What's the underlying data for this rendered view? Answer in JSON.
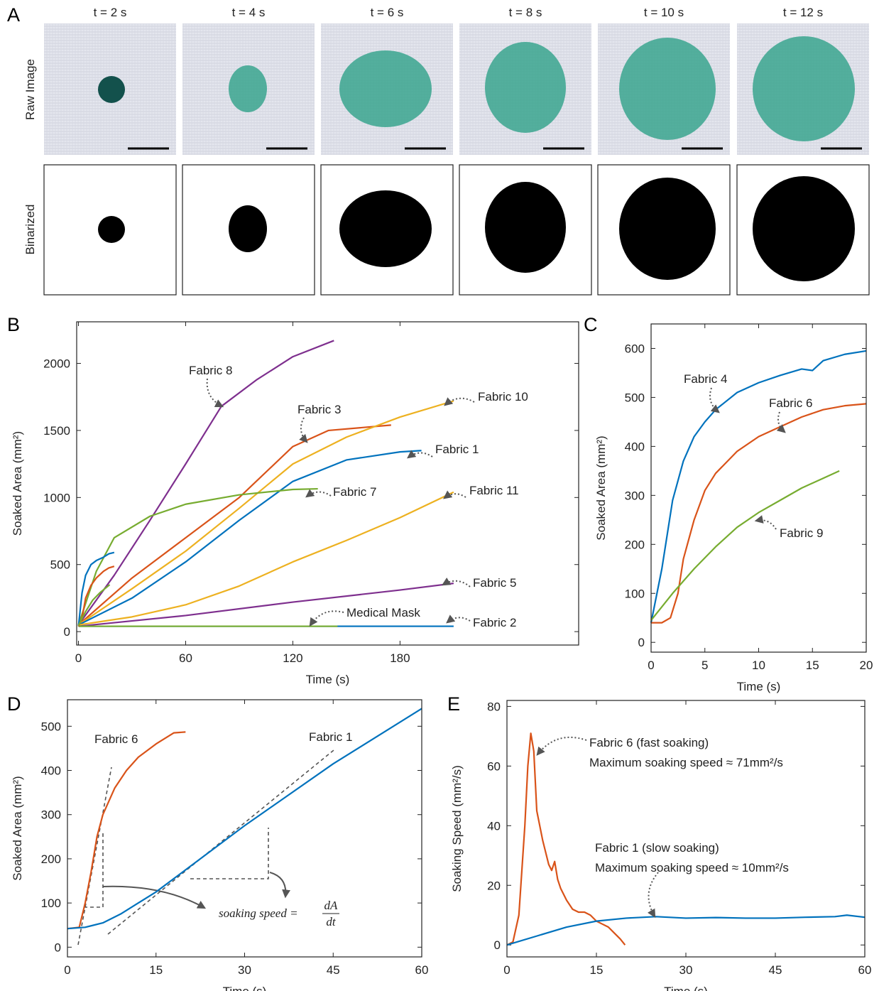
{
  "figure_a": {
    "label": "A",
    "times": [
      "t = 2 s",
      "t = 4 s",
      "t = 6 s",
      "t = 8 s",
      "t = 10 s",
      "t = 12 s"
    ],
    "rows": [
      "Raw Image",
      "Binarized"
    ]
  },
  "chart_data": [
    {
      "type": "line",
      "label": "B",
      "xlabel": "Time (s)",
      "ylabel": "Soaked Area (mm²)",
      "xlim": [
        -1,
        280
      ],
      "ylim": [
        -100,
        2310
      ],
      "xticks": [
        0,
        60,
        120,
        180
      ],
      "yticks": [
        0,
        500,
        1000,
        1500,
        2000
      ],
      "series": [
        {
          "name": "Fabric 8",
          "color": "#7e2f8e",
          "x": [
            0,
            20,
            40,
            60,
            80,
            100,
            120,
            143
          ],
          "values": [
            50,
            420,
            830,
            1250,
            1680,
            1880,
            2050,
            2170
          ]
        },
        {
          "name": "Fabric 3",
          "color": "#d95319",
          "x": [
            0,
            30,
            60,
            90,
            120,
            140,
            175
          ],
          "values": [
            50,
            400,
            700,
            1000,
            1380,
            1500,
            1540
          ]
        },
        {
          "name": "Fabric 10",
          "color": "#edb120",
          "x": [
            0,
            30,
            60,
            90,
            120,
            150,
            180,
            210
          ],
          "values": [
            50,
            320,
            600,
            920,
            1250,
            1450,
            1600,
            1720
          ]
        },
        {
          "name": "Fabric 1",
          "color": "#0072bd",
          "x": [
            0,
            30,
            60,
            90,
            120,
            150,
            180,
            192
          ],
          "values": [
            50,
            250,
            520,
            830,
            1120,
            1280,
            1340,
            1350
          ]
        },
        {
          "name": "Fabric 7",
          "color": "#77ac30",
          "x": [
            0,
            10,
            20,
            40,
            60,
            90,
            120,
            134
          ],
          "values": [
            50,
            450,
            700,
            860,
            950,
            1020,
            1060,
            1065
          ]
        },
        {
          "name": "Fabric 11",
          "color": "#edb120",
          "x": [
            0,
            30,
            60,
            90,
            120,
            150,
            180,
            210
          ],
          "values": [
            50,
            110,
            200,
            340,
            520,
            680,
            850,
            1040
          ]
        },
        {
          "name": "Fabric 5",
          "color": "#7e2f8e",
          "x": [
            0,
            60,
            120,
            180,
            210
          ],
          "values": [
            40,
            120,
            220,
            310,
            360
          ]
        },
        {
          "name": "Fabric 2",
          "color": "#0072bd",
          "x": [
            0,
            210
          ],
          "values": [
            40,
            40
          ]
        },
        {
          "name": "Medical Mask",
          "color": "#77ac30",
          "x": [
            0,
            145
          ],
          "values": [
            40,
            40
          ]
        },
        {
          "color": "#0072bd",
          "x": [
            0,
            2,
            4,
            7,
            10,
            14,
            17,
            20
          ],
          "values": [
            40,
            290,
            420,
            500,
            530,
            555,
            580,
            590
          ]
        },
        {
          "color": "#d95319",
          "x": [
            0,
            2,
            4,
            7,
            10,
            14,
            17,
            20
          ],
          "values": [
            40,
            100,
            250,
            345,
            400,
            450,
            475,
            487
          ]
        },
        {
          "color": "#77ac30",
          "x": [
            0,
            4,
            8,
            12,
            17.5
          ],
          "values": [
            45,
            150,
            235,
            290,
            350
          ]
        }
      ]
    },
    {
      "type": "line",
      "label": "C",
      "xlabel": "Time (s)",
      "ylabel": "Soaked Area (mm²)",
      "xlim": [
        0,
        20
      ],
      "ylim": [
        -20,
        650
      ],
      "xticks": [
        0,
        5,
        10,
        15,
        20
      ],
      "yticks": [
        0,
        100,
        200,
        300,
        400,
        500,
        600
      ],
      "series": [
        {
          "name": "Fabric 4",
          "color": "#0072bd",
          "x": [
            0,
            1,
            2,
            3,
            4,
            5,
            6,
            8,
            10,
            12,
            14,
            15,
            16,
            18,
            20
          ],
          "values": [
            40,
            150,
            290,
            370,
            420,
            450,
            475,
            510,
            530,
            545,
            558,
            555,
            575,
            588,
            595
          ]
        },
        {
          "name": "Fabric 6",
          "color": "#d95319",
          "x": [
            0,
            1,
            1.8,
            2.5,
            3,
            4,
            5,
            6,
            8,
            10,
            12,
            14,
            16,
            18,
            20
          ],
          "values": [
            40,
            40,
            50,
            100,
            170,
            250,
            310,
            345,
            390,
            420,
            440,
            460,
            475,
            483,
            487
          ]
        },
        {
          "name": "Fabric 9",
          "color": "#77ac30",
          "x": [
            0,
            2,
            4,
            6,
            8,
            10,
            12,
            14,
            16,
            17.5
          ],
          "values": [
            45,
            100,
            150,
            195,
            235,
            265,
            290,
            315,
            335,
            350
          ]
        }
      ]
    },
    {
      "type": "line",
      "label": "D",
      "xlabel": "Time (s)",
      "ylabel": "Soaked Area (mm²)",
      "xlim": [
        0,
        60
      ],
      "ylim": [
        -22,
        560
      ],
      "xticks": [
        0,
        15,
        30,
        45,
        60
      ],
      "yticks": [
        0,
        100,
        200,
        300,
        400,
        500
      ],
      "annotations": [
        "soaking speed =",
        "dA",
        "dt"
      ],
      "series": [
        {
          "name": "Fabric 6",
          "color": "#d95319",
          "x": [
            0,
            2,
            3,
            4,
            5,
            6,
            8,
            10,
            12,
            15,
            18,
            20
          ],
          "values": [
            42,
            45,
            100,
            170,
            250,
            300,
            360,
            400,
            430,
            460,
            485,
            487
          ]
        },
        {
          "name": "Fabric 1",
          "color": "#0072bd",
          "x": [
            0,
            3,
            6,
            9,
            12,
            15,
            18,
            21,
            30,
            45,
            60
          ],
          "values": [
            42,
            45,
            55,
            75,
            100,
            125,
            155,
            185,
            275,
            415,
            540
          ]
        }
      ]
    },
    {
      "type": "line",
      "label": "E",
      "xlabel": "Time (s)",
      "ylabel": "Soaking Speed (mm²/s)",
      "xlim": [
        0,
        60
      ],
      "ylim": [
        -4,
        82
      ],
      "xticks": [
        0,
        15,
        30,
        45,
        60
      ],
      "yticks": [
        0,
        20,
        40,
        60,
        80
      ],
      "annotations": [
        "Maximum soaking speed ≈ 71mm²/s",
        "Maximum soaking speed ≈ 10mm²/s"
      ],
      "series": [
        {
          "name": "Fabric 6 (fast soaking)",
          "color": "#d95319",
          "x": [
            0,
            1,
            2,
            3,
            3.5,
            4,
            4.5,
            5,
            6,
            7,
            7.5,
            8,
            8.5,
            9,
            10,
            11,
            12,
            13,
            14,
            15,
            16,
            17,
            18,
            19,
            19.8
          ],
          "values": [
            0,
            1,
            10,
            40,
            60,
            71,
            65,
            45,
            35,
            27,
            25,
            28,
            22,
            19,
            15,
            12,
            11,
            11,
            10,
            8,
            7,
            6,
            4,
            2,
            0
          ]
        },
        {
          "name": "Fabric 1 (slow soaking)",
          "color": "#0072bd",
          "x": [
            0,
            5,
            10,
            15,
            20,
            25,
            30,
            35,
            40,
            45,
            50,
            55,
            57,
            60
          ],
          "values": [
            0,
            3,
            6,
            8,
            9,
            9.5,
            9,
            9.2,
            9,
            9,
            9.3,
            9.5,
            10,
            9.3
          ]
        }
      ]
    }
  ]
}
